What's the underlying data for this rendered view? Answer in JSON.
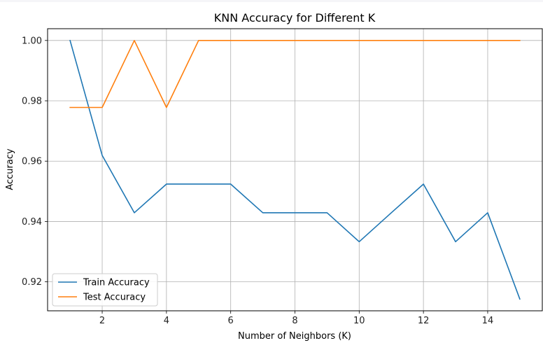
{
  "chart_data": {
    "type": "line",
    "title": "KNN Accuracy for Different K",
    "xlabel": "Number of Neighbors (K)",
    "ylabel": "Accuracy",
    "x": [
      1,
      2,
      3,
      4,
      5,
      6,
      7,
      8,
      9,
      10,
      11,
      12,
      13,
      14,
      15
    ],
    "xlim": [
      0.3,
      15.7
    ],
    "ylim": [
      0.9104,
      1.0039
    ],
    "xticks": [
      2,
      4,
      6,
      8,
      10,
      12,
      14
    ],
    "yticks": [
      0.92,
      0.94,
      0.96,
      0.98,
      1.0
    ],
    "xtick_labels": [
      "2",
      "4",
      "6",
      "8",
      "10",
      "12",
      "14"
    ],
    "ytick_labels": [
      "0.92",
      "0.94",
      "0.96",
      "0.98",
      "1.00"
    ],
    "grid": true,
    "legend_position": "lower-left",
    "series": [
      {
        "name": "Train Accuracy",
        "color": "#1f77b4",
        "values": [
          1.0,
          0.9619,
          0.9429,
          0.9524,
          0.9524,
          0.9524,
          0.9429,
          0.9429,
          0.9429,
          0.9333,
          0.9429,
          0.9524,
          0.9333,
          0.9429,
          0.9143
        ]
      },
      {
        "name": "Test Accuracy",
        "color": "#ff7f0e",
        "values": [
          0.9778,
          0.9778,
          1.0,
          0.9778,
          1.0,
          1.0,
          1.0,
          1.0,
          1.0,
          1.0,
          1.0,
          1.0,
          1.0,
          1.0,
          1.0
        ]
      }
    ]
  }
}
